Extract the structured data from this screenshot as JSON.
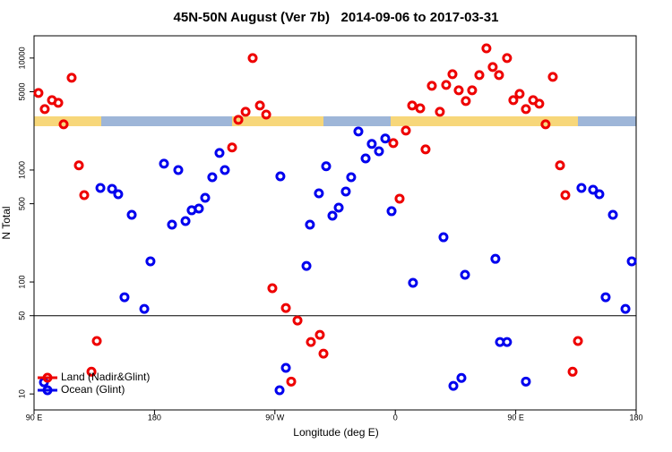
{
  "chart_data": {
    "type": "scatter",
    "title": "45N-50N August (Ver 7b)   2014-09-06 to 2017-03-31",
    "xlabel": "Longitude (deg E)",
    "ylabel": "N Total",
    "log_y": true,
    "xlim": [
      90,
      540
    ],
    "xticks": [
      {
        "value": 90,
        "label": "90 E"
      },
      {
        "value": 180,
        "label": "180"
      },
      {
        "value": 270,
        "label": "90 W"
      },
      {
        "value": 360,
        "label": "0"
      },
      {
        "value": 450,
        "label": "90 E"
      },
      {
        "value": 540,
        "label": "180"
      }
    ],
    "ylim": [
      7.2,
      15800
    ],
    "yticks": [
      10,
      50,
      100,
      500,
      1000,
      5000,
      10000
    ],
    "hline": 50,
    "legend": "bottom-left",
    "series": [
      {
        "name": "Land (Nadir&Glint)",
        "color": "#ee0000",
        "x": [
          93.3,
          98.0,
          103.4,
          108.1,
          112.1,
          118.1,
          123.5,
          127.5,
          136.9,
          132.9,
          238.0,
          242.7,
          248.1,
          253.4,
          258.8,
          263.5,
          268.1,
          278.2,
          286.9,
          296.9,
          303.6,
          306.3,
          282.2,
          358.5,
          363.2,
          367.9,
          372.6,
          378.6,
          382.6,
          387.3,
          393.3,
          398.0,
          402.7,
          407.4,
          412.7,
          417.4,
          422.8,
          428.1,
          432.8,
          437.5,
          443.5,
          448.2,
          452.9,
          457.6,
          463.0,
          467.6,
          472.3,
          477.7,
          483.1,
          487.1,
          496.5,
          492.5
        ],
        "values": [
          4880,
          3500,
          4210,
          3980,
          2560,
          6670,
          1100,
          597,
          29.7,
          15.8,
          1590,
          2810,
          3310,
          10000,
          3770,
          3130,
          88,
          58.6,
          45.3,
          29.1,
          33.7,
          22.9,
          12.9,
          1740,
          555,
          2250,
          3770,
          3560,
          1530,
          5650,
          3310,
          5750,
          7180,
          5150,
          4130,
          5150,
          7050,
          12200,
          8320,
          7050,
          10000,
          4210,
          4790,
          3500,
          4210,
          3910,
          2560,
          6790,
          1100,
          597,
          29.7,
          15.8
        ]
      },
      {
        "name": "Ocean (Glint)",
        "color": "#0000ee",
        "x": [
          97.4,
          139.6,
          148.3,
          152.9,
          157.6,
          163.0,
          172.4,
          177.0,
          187.1,
          193.1,
          197.8,
          203.2,
          207.8,
          213.2,
          217.9,
          223.2,
          228.6,
          232.6,
          273.5,
          274.1,
          278.2,
          293.6,
          296.2,
          302.9,
          308.3,
          313.0,
          317.7,
          323.0,
          327.0,
          332.4,
          337.8,
          342.4,
          347.8,
          352.5,
          357.2,
          373.2,
          396.0,
          403.4,
          409.4,
          412.1,
          434.8,
          438.2,
          443.5,
          457.6,
          499.1,
          507.8,
          512.5,
          517.2,
          522.6,
          532.0,
          536.7
        ],
        "values": [
          12.7,
          692,
          679,
          608,
          73.1,
          398,
          57.5,
          153,
          1140,
          325,
          1000,
          350,
          437,
          453,
          565,
          863,
          1420,
          1000,
          10.8,
          879,
          17.1,
          139,
          325,
          619,
          1080,
          391,
          461,
          643,
          863,
          2210,
          1270,
          1710,
          1470,
          1910,
          429,
          98.2,
          251,
          11.8,
          13.9,
          116,
          161,
          29.1,
          29.1,
          12.9,
          692,
          667,
          608,
          73.1,
          398,
          57.5,
          153
        ]
      }
    ]
  }
}
